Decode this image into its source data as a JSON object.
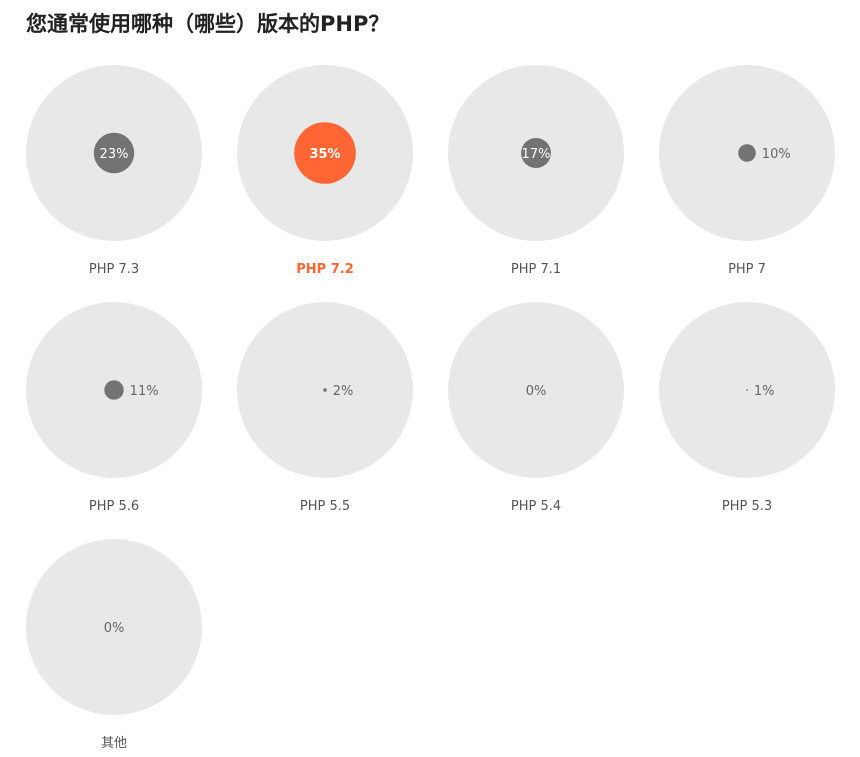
{
  "title": "您通常使用哪种（哪些）版本的PHP？",
  "colors": {
    "background_circle": "#e8e8e8",
    "value_circle": "#737373",
    "highlight": "#ff6633"
  },
  "chart_data": {
    "type": "bubble",
    "title": "您通常使用哪种（哪些）版本的PHP？",
    "unit": "%",
    "highlight": "PHP 7.2",
    "categories": [
      "PHP 7.3",
      "PHP 7.2",
      "PHP 7.1",
      "PHP 7",
      "PHP 5.6",
      "PHP 5.5",
      "PHP 5.4",
      "PHP 5.3",
      "其他"
    ],
    "values": [
      23,
      35,
      17,
      10,
      11,
      2,
      0,
      1,
      0
    ],
    "labels": [
      "23%",
      "35%",
      "17%",
      "10%",
      "11%",
      "2%",
      "0%",
      "1%",
      "0%"
    ]
  }
}
